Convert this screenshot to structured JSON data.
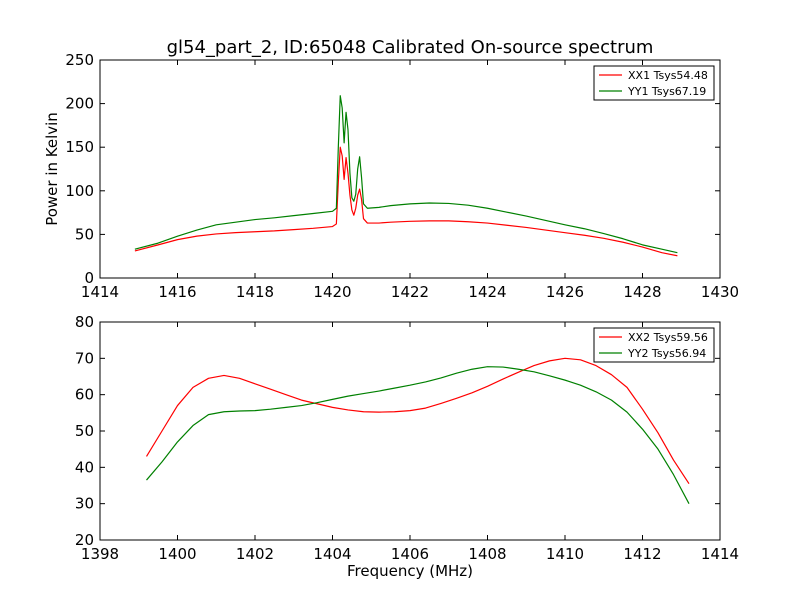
{
  "title": "gl54_part_2, ID:65048 Calibrated On-source spectrum",
  "colors": {
    "red": "#ff0000",
    "green": "#008000"
  },
  "chart_data": [
    {
      "type": "line",
      "ylabel": "Power in Kelvin",
      "xlabel": "",
      "xlim": [
        1414,
        1430
      ],
      "ylim": [
        0,
        250
      ],
      "xticks": [
        "1414",
        "1416",
        "1418",
        "1420",
        "1422",
        "1424",
        "1426",
        "1428",
        "1430"
      ],
      "yticks": [
        "0",
        "50",
        "100",
        "150",
        "200",
        "250"
      ],
      "legend": "top-right",
      "grid": false,
      "series": [
        {
          "name": "XX1 Tsys54.48",
          "color": "#ff0000",
          "points": [
            [
              1414.9,
              31
            ],
            [
              1415.5,
              38
            ],
            [
              1416,
              44
            ],
            [
              1416.5,
              48
            ],
            [
              1417,
              50.5
            ],
            [
              1417.5,
              52
            ],
            [
              1418,
              53
            ],
            [
              1418.5,
              54
            ],
            [
              1419,
              55.5
            ],
            [
              1419.5,
              57
            ],
            [
              1420,
              59
            ],
            [
              1420.1,
              62
            ],
            [
              1420.15,
              110
            ],
            [
              1420.2,
              150
            ],
            [
              1420.25,
              140
            ],
            [
              1420.3,
              113
            ],
            [
              1420.35,
              138
            ],
            [
              1420.4,
              120
            ],
            [
              1420.45,
              95
            ],
            [
              1420.5,
              78
            ],
            [
              1420.55,
              72
            ],
            [
              1420.6,
              80
            ],
            [
              1420.65,
              95
            ],
            [
              1420.7,
              102
            ],
            [
              1420.75,
              90
            ],
            [
              1420.8,
              68
            ],
            [
              1420.9,
              63
            ],
            [
              1421.2,
              63
            ],
            [
              1421.5,
              64
            ],
            [
              1422,
              65
            ],
            [
              1422.5,
              65.5
            ],
            [
              1423,
              65.5
            ],
            [
              1423.5,
              64.5
            ],
            [
              1424,
              63
            ],
            [
              1424.5,
              60.5
            ],
            [
              1425,
              58
            ],
            [
              1425.5,
              55
            ],
            [
              1426,
              52
            ],
            [
              1426.5,
              49
            ],
            [
              1427,
              45.5
            ],
            [
              1427.5,
              41
            ],
            [
              1428,
              35.5
            ],
            [
              1428.5,
              29
            ],
            [
              1428.9,
              25.5
            ]
          ]
        },
        {
          "name": "YY1 Tsys67.19",
          "color": "#008000",
          "points": [
            [
              1414.9,
              33
            ],
            [
              1415.5,
              40
            ],
            [
              1416,
              48
            ],
            [
              1416.5,
              55
            ],
            [
              1417,
              61
            ],
            [
              1417.5,
              64
            ],
            [
              1418,
              67
            ],
            [
              1418.5,
              69
            ],
            [
              1419,
              71.5
            ],
            [
              1419.5,
              74
            ],
            [
              1420,
              76.5
            ],
            [
              1420.1,
              80
            ],
            [
              1420.15,
              150
            ],
            [
              1420.2,
              209
            ],
            [
              1420.25,
              195
            ],
            [
              1420.3,
              155
            ],
            [
              1420.35,
              190
            ],
            [
              1420.4,
              170
            ],
            [
              1420.45,
              120
            ],
            [
              1420.5,
              92
            ],
            [
              1420.55,
              88
            ],
            [
              1420.6,
              96
            ],
            [
              1420.65,
              125
            ],
            [
              1420.7,
              139
            ],
            [
              1420.75,
              115
            ],
            [
              1420.8,
              85
            ],
            [
              1420.9,
              80
            ],
            [
              1421.2,
              81
            ],
            [
              1421.5,
              83
            ],
            [
              1422,
              85
            ],
            [
              1422.5,
              86
            ],
            [
              1423,
              85.5
            ],
            [
              1423.5,
              83.5
            ],
            [
              1424,
              80
            ],
            [
              1424.5,
              75.5
            ],
            [
              1425,
              71
            ],
            [
              1425.5,
              66
            ],
            [
              1426,
              61
            ],
            [
              1426.5,
              56.5
            ],
            [
              1427,
              51
            ],
            [
              1427.5,
              45
            ],
            [
              1428,
              38
            ],
            [
              1428.5,
              33
            ],
            [
              1428.9,
              29
            ]
          ]
        }
      ]
    },
    {
      "type": "line",
      "ylabel": "",
      "xlabel": "Frequency (MHz)",
      "xlim": [
        1398,
        1414
      ],
      "ylim": [
        20,
        80
      ],
      "xticks": [
        "1398",
        "1400",
        "1402",
        "1404",
        "1406",
        "1408",
        "1410",
        "1412",
        "1414"
      ],
      "yticks": [
        "20",
        "30",
        "40",
        "50",
        "60",
        "70",
        "80"
      ],
      "legend": "top-right",
      "grid": false,
      "series": [
        {
          "name": "XX2 Tsys59.56",
          "color": "#ff0000",
          "points": [
            [
              1399.2,
              43
            ],
            [
              1399.6,
              50
            ],
            [
              1400,
              57
            ],
            [
              1400.4,
              62
            ],
            [
              1400.8,
              64.5
            ],
            [
              1401.2,
              65.3
            ],
            [
              1401.6,
              64.5
            ],
            [
              1402,
              63
            ],
            [
              1402.4,
              61.5
            ],
            [
              1402.8,
              60
            ],
            [
              1403.2,
              58.5
            ],
            [
              1403.6,
              57.5
            ],
            [
              1404,
              56.5
            ],
            [
              1404.4,
              55.8
            ],
            [
              1404.8,
              55.3
            ],
            [
              1405.2,
              55.2
            ],
            [
              1405.6,
              55.3
            ],
            [
              1406,
              55.6
            ],
            [
              1406.4,
              56.3
            ],
            [
              1406.8,
              57.6
            ],
            [
              1407.2,
              59
            ],
            [
              1407.6,
              60.5
            ],
            [
              1408,
              62.3
            ],
            [
              1408.4,
              64.3
            ],
            [
              1408.8,
              66.2
            ],
            [
              1409.2,
              68
            ],
            [
              1409.6,
              69.3
            ],
            [
              1410,
              70
            ],
            [
              1410.4,
              69.6
            ],
            [
              1410.8,
              68
            ],
            [
              1411.2,
              65.5
            ],
            [
              1411.6,
              62
            ],
            [
              1412,
              56
            ],
            [
              1412.4,
              49.5
            ],
            [
              1412.8,
              42
            ],
            [
              1413.2,
              35.5
            ]
          ]
        },
        {
          "name": "YY2 Tsys56.94",
          "color": "#008000",
          "points": [
            [
              1399.2,
              36.5
            ],
            [
              1399.6,
              41.5
            ],
            [
              1400,
              47
            ],
            [
              1400.4,
              51.5
            ],
            [
              1400.8,
              54.5
            ],
            [
              1401.2,
              55.3
            ],
            [
              1401.6,
              55.5
            ],
            [
              1402,
              55.6
            ],
            [
              1402.4,
              56
            ],
            [
              1402.8,
              56.5
            ],
            [
              1403.2,
              57
            ],
            [
              1403.6,
              57.8
            ],
            [
              1404,
              58.7
            ],
            [
              1404.4,
              59.6
            ],
            [
              1404.8,
              60.3
            ],
            [
              1405.2,
              61
            ],
            [
              1405.6,
              61.8
            ],
            [
              1406,
              62.6
            ],
            [
              1406.4,
              63.5
            ],
            [
              1406.8,
              64.6
            ],
            [
              1407.2,
              65.9
            ],
            [
              1407.6,
              67
            ],
            [
              1408,
              67.7
            ],
            [
              1408.4,
              67.6
            ],
            [
              1408.8,
              67
            ],
            [
              1409.2,
              66.3
            ],
            [
              1409.6,
              65.2
            ],
            [
              1410,
              64
            ],
            [
              1410.4,
              62.6
            ],
            [
              1410.8,
              60.8
            ],
            [
              1411.2,
              58.5
            ],
            [
              1411.6,
              55.2
            ],
            [
              1412,
              50.5
            ],
            [
              1412.4,
              45
            ],
            [
              1412.8,
              38
            ],
            [
              1413.2,
              30
            ]
          ]
        }
      ]
    }
  ]
}
